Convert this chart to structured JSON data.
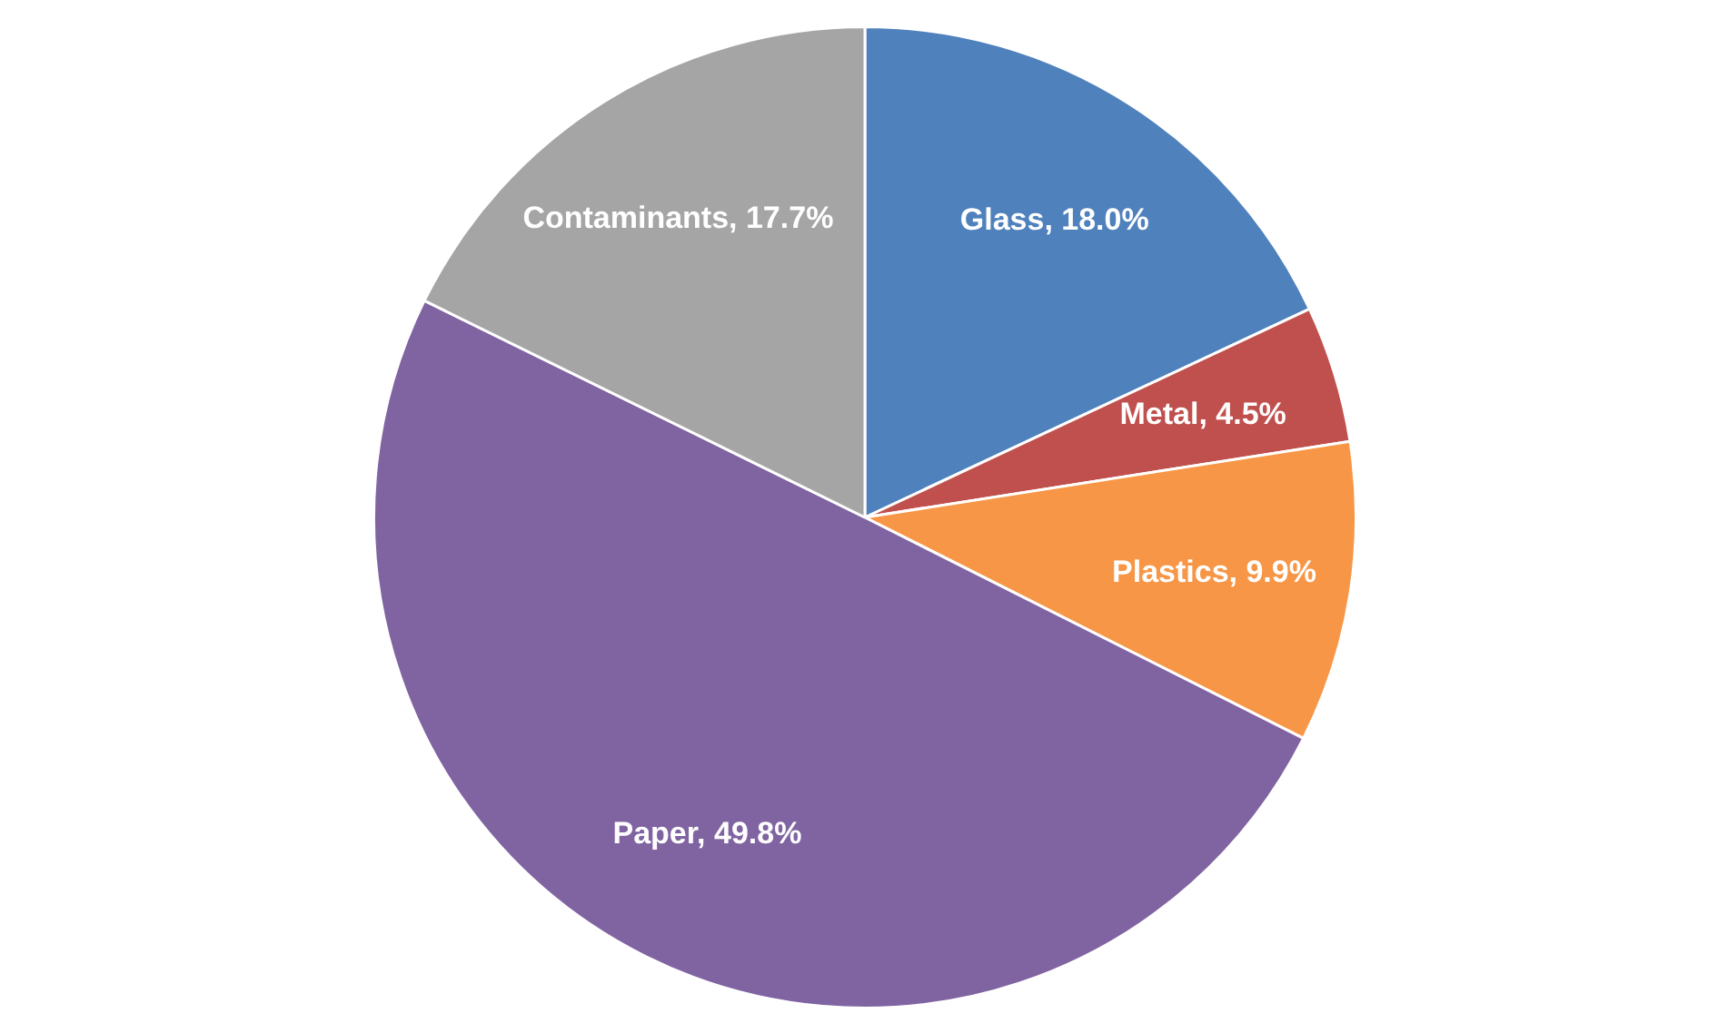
{
  "chart_data": {
    "type": "pie",
    "categories": [
      "Glass",
      "Metal",
      "Plastics",
      "Paper",
      "Contaminants"
    ],
    "values": [
      18.0,
      4.5,
      9.9,
      49.8,
      17.7
    ],
    "colors": [
      "#4f81bd",
      "#c0504d",
      "#f79646",
      "#8064a2",
      "#a5a5a5"
    ],
    "value_labels": [
      "18.0%",
      "4.5%",
      "9.9%",
      "49.8%",
      "17.7%"
    ]
  }
}
